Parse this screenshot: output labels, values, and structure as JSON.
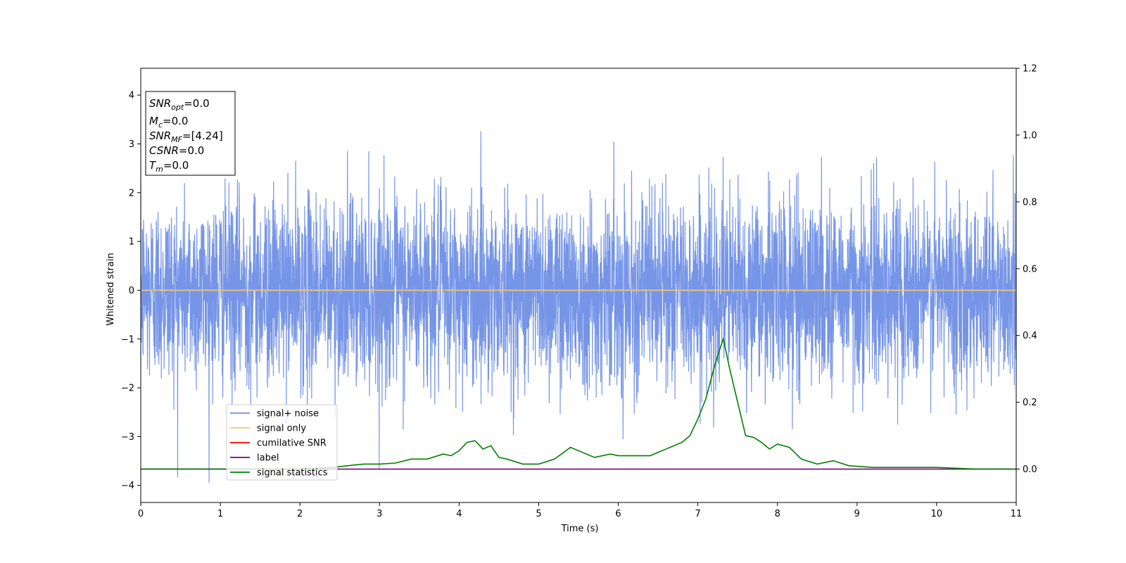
{
  "chart_data": {
    "type": "line",
    "xlabel": "Time (s)",
    "ylabel": "Whitened strain",
    "xlim": [
      0,
      11
    ],
    "ylim_left": [
      -4.35,
      4.55
    ],
    "ylim_right": [
      -0.1,
      1.2
    ],
    "x_ticks": [
      0,
      1,
      2,
      3,
      4,
      5,
      6,
      7,
      8,
      9,
      10,
      11
    ],
    "y_ticks_left": [
      -4,
      -3,
      -2,
      -1,
      0,
      1,
      2,
      3,
      4
    ],
    "y_ticks_right": [
      0.0,
      0.2,
      0.4,
      0.6,
      0.8,
      1.0,
      1.2
    ],
    "grid": false,
    "legend_position": "lower-left",
    "annotation": {
      "lines": [
        {
          "var": "SNR",
          "sub": "opt",
          "value": "=0.0"
        },
        {
          "var": "M",
          "sub": "c",
          "value": "=0.0"
        },
        {
          "var": "SNR",
          "sub": "MF",
          "value": "=[4.24]"
        },
        {
          "var": "CSNR",
          "sub": "",
          "value": "=0.0"
        },
        {
          "var": "T",
          "sub": "m",
          "value": "=0.0"
        }
      ]
    },
    "series": [
      {
        "name": "signal+ noise",
        "color": "#6f8fe6",
        "axis": "left",
        "kind": "noise",
        "std": 1.0,
        "x_range": [
          0,
          11
        ]
      },
      {
        "name": "signal only",
        "color": "#f5c77e",
        "axis": "left",
        "x": [
          0,
          11
        ],
        "y": [
          0,
          0
        ]
      },
      {
        "name": "cumilative SNR",
        "color": "#ff0000",
        "axis": "right",
        "x": [],
        "y": []
      },
      {
        "name": "label",
        "color": "#800080",
        "axis": "right",
        "x": [
          0,
          11
        ],
        "y": [
          0,
          0
        ]
      },
      {
        "name": "signal statistics",
        "color": "#008000",
        "axis": "right",
        "x": [
          0,
          1,
          2,
          2.4,
          2.6,
          2.8,
          3.0,
          3.2,
          3.4,
          3.6,
          3.8,
          3.9,
          4.0,
          4.1,
          4.2,
          4.3,
          4.4,
          4.5,
          4.6,
          4.8,
          5.0,
          5.2,
          5.4,
          5.6,
          5.7,
          5.9,
          6.0,
          6.2,
          6.4,
          6.6,
          6.8,
          6.9,
          7.0,
          7.1,
          7.2,
          7.25,
          7.32,
          7.4,
          7.5,
          7.6,
          7.7,
          7.8,
          7.9,
          8.0,
          8.15,
          8.3,
          8.5,
          8.7,
          8.9,
          9.2,
          9.5,
          10.0,
          10.5,
          11.0
        ],
        "y": [
          0.0,
          0.0,
          0.0,
          0.005,
          0.01,
          0.015,
          0.015,
          0.018,
          0.03,
          0.03,
          0.045,
          0.04,
          0.055,
          0.08,
          0.085,
          0.06,
          0.07,
          0.035,
          0.03,
          0.015,
          0.015,
          0.03,
          0.065,
          0.045,
          0.035,
          0.045,
          0.04,
          0.04,
          0.04,
          0.06,
          0.08,
          0.1,
          0.15,
          0.21,
          0.3,
          0.34,
          0.39,
          0.3,
          0.2,
          0.1,
          0.095,
          0.08,
          0.06,
          0.075,
          0.065,
          0.03,
          0.015,
          0.025,
          0.01,
          0.005,
          0.005,
          0.005,
          0.0,
          0.0
        ]
      }
    ]
  }
}
